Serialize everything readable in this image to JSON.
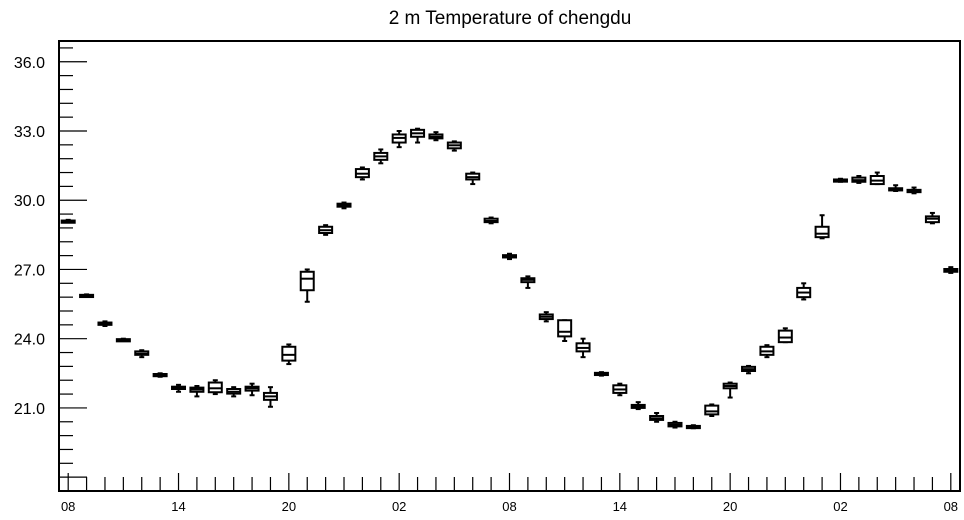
{
  "chart_data": {
    "type": "boxplot",
    "title": "2 m Temperature of chengdu",
    "xlabel": "",
    "ylabel": "",
    "ylim": [
      17.4,
      36.9
    ],
    "y_ticks": [
      "36.0",
      "33.0",
      "30.0",
      "27.0",
      "24.0",
      "21.0"
    ],
    "y_tick_values": [
      36,
      33,
      30,
      27,
      24,
      21
    ],
    "x_tick_labels": [
      "08",
      "14",
      "20",
      "02",
      "08",
      "14",
      "20",
      "02",
      "08"
    ],
    "x_tick_hours": [
      0,
      6,
      12,
      18,
      24,
      30,
      36,
      42,
      48
    ],
    "xlim": [
      -0.5,
      48.5
    ],
    "grid": false,
    "series": [
      {
        "boxes": [
          {
            "hour": 0,
            "min": 29.05,
            "q1": 29.08,
            "median": 29.1,
            "q3": 29.12,
            "max": 29.15
          },
          {
            "hour": 1,
            "min": 25.82,
            "q1": 25.85,
            "median": 25.87,
            "q3": 25.9,
            "max": 25.92
          },
          {
            "hour": 2,
            "min": 24.55,
            "q1": 24.6,
            "median": 24.65,
            "q3": 24.7,
            "max": 24.75
          },
          {
            "hour": 3,
            "min": 23.9,
            "q1": 23.93,
            "median": 23.95,
            "q3": 23.98,
            "max": 24.0
          },
          {
            "hour": 4,
            "min": 23.2,
            "q1": 23.3,
            "median": 23.35,
            "q3": 23.45,
            "max": 23.5
          },
          {
            "hour": 5,
            "min": 22.35,
            "q1": 22.4,
            "median": 22.43,
            "q3": 22.47,
            "max": 22.5
          },
          {
            "hour": 6,
            "min": 21.7,
            "q1": 21.82,
            "median": 21.88,
            "q3": 21.92,
            "max": 22.0
          },
          {
            "hour": 7,
            "min": 21.5,
            "q1": 21.7,
            "median": 21.8,
            "q3": 21.88,
            "max": 21.95
          },
          {
            "hour": 8,
            "min": 21.6,
            "q1": 21.68,
            "median": 21.85,
            "q3": 22.1,
            "max": 22.2
          },
          {
            "hour": 9,
            "min": 21.5,
            "q1": 21.62,
            "median": 21.7,
            "q3": 21.82,
            "max": 21.9
          },
          {
            "hour": 10,
            "min": 21.55,
            "q1": 21.75,
            "median": 21.85,
            "q3": 21.92,
            "max": 22.05
          },
          {
            "hour": 11,
            "min": 21.05,
            "q1": 21.35,
            "median": 21.5,
            "q3": 21.65,
            "max": 21.9
          },
          {
            "hour": 12,
            "min": 22.9,
            "q1": 23.05,
            "median": 23.3,
            "q3": 23.65,
            "max": 23.75
          },
          {
            "hour": 13,
            "min": 25.6,
            "q1": 26.1,
            "median": 26.6,
            "q3": 26.9,
            "max": 27.0
          },
          {
            "hour": 14,
            "min": 28.5,
            "q1": 28.58,
            "median": 28.7,
            "q3": 28.85,
            "max": 28.92
          },
          {
            "hour": 15,
            "min": 29.65,
            "q1": 29.72,
            "median": 29.78,
            "q3": 29.85,
            "max": 29.9
          },
          {
            "hour": 16,
            "min": 30.9,
            "q1": 31.0,
            "median": 31.15,
            "q3": 31.35,
            "max": 31.42
          },
          {
            "hour": 17,
            "min": 31.6,
            "q1": 31.75,
            "median": 31.9,
            "q3": 32.05,
            "max": 32.2
          },
          {
            "hour": 18,
            "min": 32.3,
            "q1": 32.5,
            "median": 32.7,
            "q3": 32.85,
            "max": 33.0
          },
          {
            "hour": 19,
            "min": 32.5,
            "q1": 32.75,
            "median": 32.9,
            "q3": 33.05,
            "max": 33.1
          },
          {
            "hour": 20,
            "min": 32.6,
            "q1": 32.68,
            "median": 32.75,
            "q3": 32.85,
            "max": 32.95
          },
          {
            "hour": 21,
            "min": 32.15,
            "q1": 32.25,
            "median": 32.38,
            "q3": 32.5,
            "max": 32.55
          },
          {
            "hour": 22,
            "min": 30.7,
            "q1": 30.9,
            "median": 31.0,
            "q3": 31.15,
            "max": 31.2
          },
          {
            "hour": 23,
            "min": 29.0,
            "q1": 29.05,
            "median": 29.1,
            "q3": 29.2,
            "max": 29.25
          },
          {
            "hour": 24,
            "min": 27.45,
            "q1": 27.52,
            "median": 27.57,
            "q3": 27.62,
            "max": 27.68
          },
          {
            "hour": 25,
            "min": 26.2,
            "q1": 26.45,
            "median": 26.55,
            "q3": 26.62,
            "max": 26.7
          },
          {
            "hour": 26,
            "min": 24.75,
            "q1": 24.85,
            "median": 24.95,
            "q3": 25.05,
            "max": 25.15
          },
          {
            "hour": 27,
            "min": 23.9,
            "q1": 24.1,
            "median": 24.3,
            "q3": 24.8,
            "max": 24.8
          },
          {
            "hour": 28,
            "min": 23.2,
            "q1": 23.45,
            "median": 23.6,
            "q3": 23.8,
            "max": 24.0
          },
          {
            "hour": 29,
            "min": 22.4,
            "q1": 22.43,
            "median": 22.47,
            "q3": 22.52,
            "max": 22.55
          },
          {
            "hour": 30,
            "min": 21.55,
            "q1": 21.65,
            "median": 21.8,
            "q3": 21.98,
            "max": 22.05
          },
          {
            "hour": 31,
            "min": 20.95,
            "q1": 21.0,
            "median": 21.07,
            "q3": 21.13,
            "max": 21.25
          },
          {
            "hour": 32,
            "min": 20.4,
            "q1": 20.48,
            "median": 20.55,
            "q3": 20.65,
            "max": 20.78
          },
          {
            "hour": 33,
            "min": 20.15,
            "q1": 20.2,
            "median": 20.27,
            "q3": 20.35,
            "max": 20.4
          },
          {
            "hour": 34,
            "min": 20.12,
            "q1": 20.15,
            "median": 20.18,
            "q3": 20.22,
            "max": 20.25
          },
          {
            "hour": 35,
            "min": 20.65,
            "q1": 20.72,
            "median": 20.85,
            "q3": 21.1,
            "max": 21.15
          },
          {
            "hour": 36,
            "min": 21.45,
            "q1": 21.85,
            "median": 21.95,
            "q3": 22.05,
            "max": 22.1
          },
          {
            "hour": 37,
            "min": 22.5,
            "q1": 22.6,
            "median": 22.68,
            "q3": 22.78,
            "max": 22.82
          },
          {
            "hour": 38,
            "min": 23.2,
            "q1": 23.3,
            "median": 23.45,
            "q3": 23.65,
            "max": 23.72
          },
          {
            "hour": 39,
            "min": 23.85,
            "q1": 23.85,
            "median": 24.05,
            "q3": 24.35,
            "max": 24.45
          },
          {
            "hour": 40,
            "min": 25.7,
            "q1": 25.8,
            "median": 26.0,
            "q3": 26.2,
            "max": 26.4
          },
          {
            "hour": 41,
            "min": 28.35,
            "q1": 28.4,
            "median": 28.55,
            "q3": 28.85,
            "max": 29.35
          },
          {
            "hour": 42,
            "min": 30.8,
            "q1": 30.83,
            "median": 30.87,
            "q3": 30.9,
            "max": 30.93
          },
          {
            "hour": 43,
            "min": 30.75,
            "q1": 30.8,
            "median": 30.87,
            "q3": 30.98,
            "max": 31.05
          },
          {
            "hour": 44,
            "min": 30.7,
            "q1": 30.7,
            "median": 30.85,
            "q3": 31.05,
            "max": 31.2
          },
          {
            "hour": 45,
            "min": 30.4,
            "q1": 30.45,
            "median": 30.48,
            "q3": 30.52,
            "max": 30.65
          },
          {
            "hour": 46,
            "min": 30.3,
            "q1": 30.35,
            "median": 30.4,
            "q3": 30.45,
            "max": 30.55
          },
          {
            "hour": 47,
            "min": 29.0,
            "q1": 29.05,
            "median": 29.2,
            "q3": 29.3,
            "max": 29.45
          },
          {
            "hour": 48,
            "min": 26.85,
            "q1": 26.9,
            "median": 26.95,
            "q3": 27.02,
            "max": 27.1
          }
        ]
      }
    ]
  }
}
